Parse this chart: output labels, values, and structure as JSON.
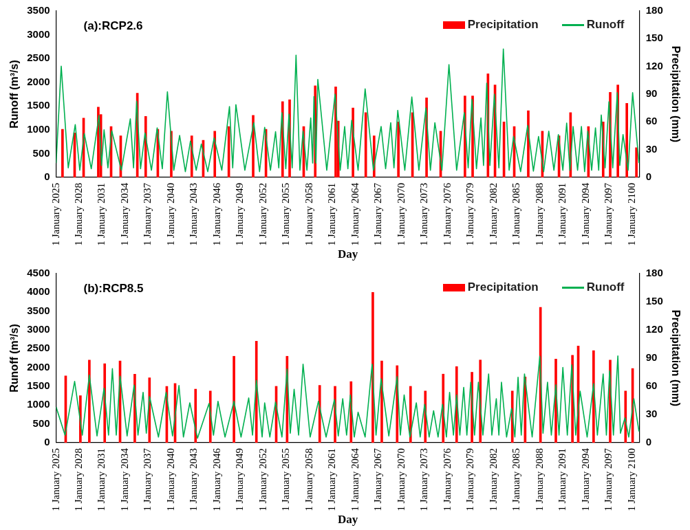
{
  "chart_data": [
    {
      "type": "line",
      "title": "(a):RCP2.6",
      "xlabel": "Day",
      "ylabel": "Runoff (m³/s)",
      "y2label": "Precipitation (mm)",
      "legend": "top right",
      "xlim": [
        "2025-01-01",
        "2100-12-31"
      ],
      "xticks": [
        {
          "value": "2025-01-01",
          "label": "1 January 2025"
        },
        {
          "value": "2028-01-01",
          "label": "1 January 2028"
        },
        {
          "value": "2031-01-01",
          "label": "1 January 2031"
        },
        {
          "value": "2034-01-01",
          "label": "1 January 2034"
        },
        {
          "value": "2037-01-01",
          "label": "1 January 2037"
        },
        {
          "value": "2040-01-01",
          "label": "1 January 2040"
        },
        {
          "value": "2043-01-01",
          "label": "1 January 2043"
        },
        {
          "value": "2046-01-01",
          "label": "1 January 2046"
        },
        {
          "value": "2049-01-01",
          "label": "1 January 2049"
        },
        {
          "value": "2052-01-01",
          "label": "1 January 2052"
        },
        {
          "value": "2055-01-01",
          "label": "1 January 2055"
        },
        {
          "value": "2058-01-01",
          "label": "1 January 2058"
        },
        {
          "value": "2061-01-01",
          "label": "1 January 2061"
        },
        {
          "value": "2064-01-01",
          "label": "1 January 2064"
        },
        {
          "value": "2067-01-01",
          "label": "1 January 2067"
        },
        {
          "value": "2070-01-01",
          "label": "1 January 2070"
        },
        {
          "value": "2073-01-01",
          "label": "1 January 2073"
        },
        {
          "value": "2076-01-01",
          "label": "1 January 2076"
        },
        {
          "value": "2079-01-01",
          "label": "1 January 2079"
        },
        {
          "value": "2082-01-01",
          "label": "1 January 2082"
        },
        {
          "value": "2085-01-01",
          "label": "1 January 2085"
        },
        {
          "value": "2088-01-01",
          "label": "1 January 2088"
        },
        {
          "value": "2091-01-01",
          "label": "1 January 2091"
        },
        {
          "value": "2094-01-01",
          "label": "1 January 2094"
        },
        {
          "value": "2097-01-01",
          "label": "1 January 2097"
        },
        {
          "value": "2100-01-01",
          "label": "1 January 2100"
        }
      ],
      "ylim": [
        0,
        3500
      ],
      "yticks": [
        0,
        500,
        1000,
        1500,
        2000,
        2500,
        3000,
        3500
      ],
      "y2lim": [
        0,
        180
      ],
      "y2ticks": [
        0,
        30,
        60,
        90,
        120,
        150,
        180
      ],
      "series": [
        {
          "name": "Precipitation",
          "type": "bar",
          "axis": "y2",
          "color": "#ff0000",
          "x": [
            "2025-11",
            "2027-06",
            "2028-08",
            "2030-07",
            "2030-11",
            "2032-03",
            "2033-06",
            "2035-08",
            "2036-09",
            "2038-04",
            "2040-01",
            "2042-09",
            "2044-03",
            "2045-09",
            "2047-07",
            "2050-09",
            "2052-05",
            "2054-07",
            "2055-06",
            "2057-04",
            "2058-10",
            "2061-06",
            "2061-10",
            "2063-09",
            "2065-05",
            "2066-06",
            "2069-08",
            "2071-06",
            "2073-04",
            "2075-02",
            "2078-04",
            "2079-04",
            "2081-04",
            "2082-03",
            "2083-05",
            "2084-09",
            "2086-07",
            "2088-05",
            "2090-07",
            "2092-01",
            "2094-05",
            "2096-04",
            "2097-03",
            "2098-03",
            "2099-05",
            "2100-08"
          ],
          "values": [
            52,
            48,
            64,
            76,
            68,
            55,
            45,
            91,
            66,
            52,
            50,
            45,
            40,
            50,
            55,
            67,
            52,
            82,
            84,
            55,
            99,
            98,
            61,
            75,
            70,
            45,
            60,
            70,
            86,
            50,
            88,
            88,
            112,
            100,
            60,
            55,
            72,
            50,
            45,
            70,
            55,
            60,
            92,
            100,
            80,
            32
          ]
        },
        {
          "name": "Runoff",
          "color": "#00b050",
          "x": [
            "2025-01",
            "2025-09",
            "2026-08",
            "2027-07",
            "2028-02",
            "2028-09",
            "2029-08",
            "2030-08",
            "2030-12",
            "2031-04",
            "2031-10",
            "2032-04",
            "2033-07",
            "2034-09",
            "2035-02",
            "2035-07",
            "2036-01",
            "2036-08",
            "2037-06",
            "2038-03",
            "2038-11",
            "2039-07",
            "2040-05",
            "2041-02",
            "2041-11",
            "2042-07",
            "2043-04",
            "2043-12",
            "2044-10",
            "2045-08",
            "2046-08",
            "2047-08",
            "2048-01",
            "2048-06",
            "2049-08",
            "2050-10",
            "2051-07",
            "2052-03",
            "2052-12",
            "2053-08",
            "2054-01",
            "2054-06",
            "2054-12",
            "2055-05",
            "2055-10",
            "2056-04",
            "2056-10",
            "2057-03",
            "2057-09",
            "2058-03",
            "2058-06",
            "2058-08",
            "2058-11",
            "2059-02",
            "2060-04",
            "2061-05",
            "2062-01",
            "2062-08",
            "2063-01",
            "2063-07",
            "2064-05",
            "2065-04",
            "2066-05",
            "2067-05",
            "2067-12",
            "2068-08",
            "2069-01",
            "2069-07",
            "2070-06",
            "2071-05",
            "2072-04",
            "2073-03",
            "2073-10",
            "2074-05",
            "2075-04",
            "2076-03",
            "2077-03",
            "2078-03",
            "2078-09",
            "2079-03",
            "2079-10",
            "2080-05",
            "2080-09",
            "2081-02",
            "2081-07",
            "2082-02",
            "2082-09",
            "2083-04",
            "2084-01",
            "2084-08",
            "2085-07",
            "2086-06",
            "2087-03",
            "2087-11",
            "2088-07",
            "2089-03",
            "2089-11",
            "2090-06",
            "2091-01",
            "2091-07",
            "2091-12",
            "2092-05",
            "2092-12",
            "2093-06",
            "2093-11",
            "2094-04",
            "2094-10",
            "2095-04",
            "2095-09",
            "2096-01",
            "2096-07",
            "2097-01",
            "2097-07",
            "2098-02",
            "2098-06",
            "2098-11",
            "2099-07",
            "2100-02",
            "2100-12"
          ],
          "values": [
            300,
            2340,
            200,
            1110,
            150,
            920,
            180,
            1300,
            250,
            1000,
            200,
            980,
            150,
            1230,
            200,
            1600,
            180,
            930,
            150,
            1040,
            180,
            1800,
            150,
            880,
            120,
            760,
            150,
            700,
            120,
            830,
            150,
            1490,
            200,
            1530,
            150,
            1150,
            120,
            1050,
            150,
            960,
            200,
            1360,
            180,
            1330,
            200,
            2570,
            150,
            970,
            150,
            1250,
            300,
            1700,
            300,
            2060,
            150,
            1750,
            150,
            1070,
            180,
            1200,
            150,
            1860,
            150,
            1070,
            180,
            1150,
            200,
            1410,
            150,
            1690,
            150,
            1460,
            150,
            1150,
            150,
            2370,
            150,
            1360,
            200,
            1640,
            180,
            1250,
            250,
            1980,
            250,
            1750,
            200,
            2700,
            150,
            860,
            120,
            1090,
            130,
            860,
            120,
            970,
            150,
            900,
            150,
            1140,
            150,
            1070,
            150,
            1070,
            120,
            970,
            150,
            1040,
            150,
            1310,
            200,
            1590,
            200,
            1780,
            250,
            900,
            150,
            1780,
            300
          ]
        }
      ]
    },
    {
      "type": "line",
      "title": "(b):RCP8.5",
      "xlabel": "Day",
      "ylabel": "Runoff (m³/s)",
      "y2label": "Precipitation (mm)",
      "legend": "top right",
      "xlim": [
        "2025-01-01",
        "2100-12-31"
      ],
      "xticks": [
        {
          "value": "2025-01-01",
          "label": "1 January 2025"
        },
        {
          "value": "2028-01-01",
          "label": "1 January 2028"
        },
        {
          "value": "2031-01-01",
          "label": "1 January 2031"
        },
        {
          "value": "2034-01-01",
          "label": "1 January 2034"
        },
        {
          "value": "2037-01-01",
          "label": "1 January 2037"
        },
        {
          "value": "2040-01-01",
          "label": "1 January 2040"
        },
        {
          "value": "2043-01-01",
          "label": "1 January 2043"
        },
        {
          "value": "2046-01-01",
          "label": "1 January 2046"
        },
        {
          "value": "2049-01-01",
          "label": "1 January 2049"
        },
        {
          "value": "2052-01-01",
          "label": "1 January 2052"
        },
        {
          "value": "2055-01-01",
          "label": "1 January 2055"
        },
        {
          "value": "2058-01-01",
          "label": "1 January 2058"
        },
        {
          "value": "2061-01-01",
          "label": "1 January 2061"
        },
        {
          "value": "2064-01-01",
          "label": "1 January 2064"
        },
        {
          "value": "2067-01-01",
          "label": "1 January 2067"
        },
        {
          "value": "2070-01-01",
          "label": "1 January 2070"
        },
        {
          "value": "2073-01-01",
          "label": "1 January 2073"
        },
        {
          "value": "2076-01-01",
          "label": "1 January 2076"
        },
        {
          "value": "2079-01-01",
          "label": "1 January 2079"
        },
        {
          "value": "2082-01-01",
          "label": "1 January 2082"
        },
        {
          "value": "2085-01-01",
          "label": "1 January 2085"
        },
        {
          "value": "2088-01-01",
          "label": "1 January 2088"
        },
        {
          "value": "2091-01-01",
          "label": "1 January 2091"
        },
        {
          "value": "2094-01-01",
          "label": "1 January 2094"
        },
        {
          "value": "2097-01-01",
          "label": "1 January 2097"
        },
        {
          "value": "2100-01-01",
          "label": "1 January 2100"
        }
      ],
      "ylim": [
        0,
        4500
      ],
      "yticks": [
        0,
        500,
        1000,
        1500,
        2000,
        2500,
        3000,
        3500,
        4000,
        4500
      ],
      "y2lim": [
        0,
        180
      ],
      "y2ticks": [
        0,
        30,
        60,
        90,
        120,
        150,
        180
      ],
      "series": [
        {
          "name": "Precipitation",
          "type": "bar",
          "axis": "y2",
          "color": "#ff0000",
          "x": [
            "2026-04",
            "2028-03",
            "2029-05",
            "2031-05",
            "2033-05",
            "2035-04",
            "2037-03",
            "2039-06",
            "2040-07",
            "2043-03",
            "2045-02",
            "2048-03",
            "2051-02",
            "2053-09",
            "2055-02",
            "2059-05",
            "2061-05",
            "2063-06",
            "2066-04",
            "2067-06",
            "2069-06",
            "2071-03",
            "2073-02",
            "2075-06",
            "2077-03",
            "2079-03",
            "2080-04",
            "2084-06",
            "2086-02",
            "2088-02",
            "2090-02",
            "2092-04",
            "2093-01",
            "2095-01",
            "2097-03",
            "2099-03",
            "2100-02"
          ],
          "values": [
            71,
            50,
            88,
            84,
            87,
            73,
            69,
            60,
            63,
            57,
            55,
            92,
            108,
            60,
            92,
            61,
            60,
            65,
            160,
            87,
            82,
            60,
            55,
            73,
            81,
            75,
            88,
            55,
            70,
            144,
            89,
            93,
            103,
            98,
            88,
            55,
            79
          ]
        },
        {
          "name": "Runoff",
          "color": "#00b050",
          "x": [
            "2025-01",
            "2026-03",
            "2027-06",
            "2028-06",
            "2029-05",
            "2030-05",
            "2031-04",
            "2031-11",
            "2032-05",
            "2032-11",
            "2033-05",
            "2034-04",
            "2035-03",
            "2035-09",
            "2036-05",
            "2036-10",
            "2037-03",
            "2038-05",
            "2039-05",
            "2040-03",
            "2041-01",
            "2041-08",
            "2042-06",
            "2043-06",
            "2044-12",
            "2045-07",
            "2046-02",
            "2047-01",
            "2048-03",
            "2049-02",
            "2050-02",
            "2050-08",
            "2051-02",
            "2051-11",
            "2052-03",
            "2052-11",
            "2053-08",
            "2054-06",
            "2055-02",
            "2055-07",
            "2056-01",
            "2056-08",
            "2057-03",
            "2058-02",
            "2059-03",
            "2060-03",
            "2061-04",
            "2061-10",
            "2062-05",
            "2062-11",
            "2063-05",
            "2063-11",
            "2064-05",
            "2065-04",
            "2066-03",
            "2066-09",
            "2067-05",
            "2068-05",
            "2069-06",
            "2069-11",
            "2070-05",
            "2071-02",
            "2071-12",
            "2072-06",
            "2073-01",
            "2073-08",
            "2074-03",
            "2074-10",
            "2075-05",
            "2075-11",
            "2076-04",
            "2076-10",
            "2077-03",
            "2077-08",
            "2078-02",
            "2078-07",
            "2079-01",
            "2079-07",
            "2080-01",
            "2080-08",
            "2081-05",
            "2081-10",
            "2082-05",
            "2082-09",
            "2083-01",
            "2083-09",
            "2084-05",
            "2084-10",
            "2085-03",
            "2085-08",
            "2086-01",
            "2087-01",
            "2088-01",
            "2088-06",
            "2089-01",
            "2089-07",
            "2090-02",
            "2090-07",
            "2091-01",
            "2091-08",
            "2092-03",
            "2092-09",
            "2093-04",
            "2094-03",
            "2095-01",
            "2095-07",
            "2096-04",
            "2096-09",
            "2097-02",
            "2097-08",
            "2098-03",
            "2098-07",
            "2099-02",
            "2099-08",
            "2100-04",
            "2100-12"
          ],
          "values": [
            950,
            200,
            1630,
            200,
            1800,
            180,
            1450,
            200,
            1970,
            200,
            1770,
            180,
            1530,
            200,
            1340,
            250,
            1230,
            150,
            1340,
            180,
            1520,
            150,
            1060,
            120,
            1040,
            200,
            1100,
            150,
            1100,
            150,
            1190,
            200,
            1660,
            150,
            1060,
            150,
            1080,
            150,
            1960,
            250,
            1420,
            200,
            2090,
            150,
            1100,
            150,
            1150,
            180,
            1170,
            200,
            1270,
            150,
            810,
            150,
            2090,
            200,
            1700,
            180,
            1760,
            200,
            1270,
            150,
            1060,
            150,
            1020,
            150,
            850,
            150,
            1020,
            150,
            1340,
            200,
            1270,
            200,
            1470,
            200,
            1610,
            200,
            1610,
            200,
            1830,
            200,
            1170,
            200,
            1610,
            150,
            910,
            150,
            1740,
            200,
            1830,
            150,
            2300,
            250,
            1610,
            200,
            1540,
            200,
            2000,
            200,
            2070,
            200,
            1370,
            150,
            1570,
            200,
            1830,
            200,
            1910,
            200,
            2310,
            250,
            660,
            150,
            1170,
            300
          ]
        }
      ]
    }
  ]
}
